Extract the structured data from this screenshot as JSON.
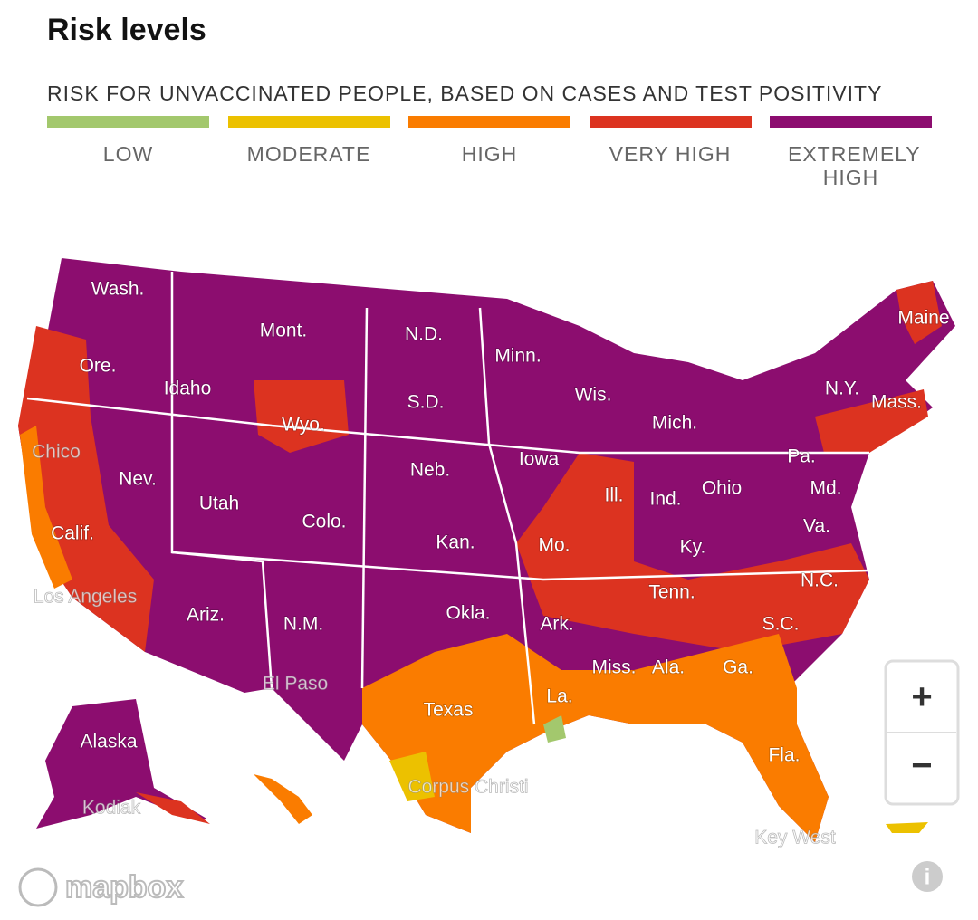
{
  "header": {
    "title": "Risk levels"
  },
  "legend": {
    "subtitle": "RISK FOR UNVACCINATED PEOPLE, BASED ON CASES AND TEST POSITIVITY",
    "levels": [
      {
        "label": "LOW",
        "color": "#a3c86d"
      },
      {
        "label": "MODERATE",
        "color": "#ecc100"
      },
      {
        "label": "HIGH",
        "color": "#fa7c00"
      },
      {
        "label": "VERY HIGH",
        "color": "#dc3320"
      },
      {
        "label": "EXTREMELY HIGH",
        "color": "#8c0d6f"
      }
    ]
  },
  "map": {
    "state_labels": [
      "Wash.",
      "Mont.",
      "N.D.",
      "Minn.",
      "Maine",
      "Ore.",
      "Idaho",
      "S.D.",
      "Wis.",
      "N.Y.",
      "Mass.",
      "Wyo.",
      "Mich.",
      "Neb.",
      "Iowa",
      "Pa.",
      "Nev.",
      "Utah",
      "Ill.",
      "Ind.",
      "Ohio",
      "Md.",
      "Colo.",
      "Kan.",
      "Mo.",
      "Va.",
      "Ky.",
      "Calif.",
      "Tenn.",
      "N.C.",
      "Okla.",
      "Ark.",
      "S.C.",
      "Ariz.",
      "N.M.",
      "Miss.",
      "Ala.",
      "Ga.",
      "La.",
      "Texas",
      "Alaska",
      "Fla."
    ],
    "city_labels": [
      "Chico",
      "Los Angeles",
      "El Paso",
      "Corpus Christi",
      "Kodiak",
      "Key West"
    ]
  },
  "controls": {
    "zoom_in": "+",
    "zoom_out": "−",
    "attribution": "mapbox",
    "info": "i"
  }
}
